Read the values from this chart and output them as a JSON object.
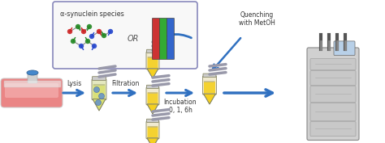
{
  "bg_color": "#ffffff",
  "fig_width": 4.74,
  "fig_height": 1.77,
  "dpi": 100,
  "box_title": "α-synuclein species",
  "label_lysis": "Lysis",
  "label_filtration": "Filtration",
  "label_incubation": "Incubation\n0, 1, 6h",
  "label_quenching": "Quenching\nwith MetOH",
  "label_or": "OR",
  "arrow_color": "#3070c0",
  "box_edge_color": "#8888bb",
  "text_color": "#333333",
  "tube_yellow": "#f5d020",
  "tube_gray": "#cccccc",
  "tube_edge": "#888855",
  "flask_pink": "#e87878",
  "flask_outline": "#cccccc",
  "flask_cap": "#4488cc",
  "monomer_red": "#cc2222",
  "monomer_blue": "#2244cc",
  "monomer_green": "#228822",
  "fibril_red": "#cc3333",
  "fibril_green": "#33aa33",
  "fibril_blue": "#3366cc",
  "filter_color": "#9999aa",
  "lcms_body": "#cccccc",
  "lcms_dark": "#888888"
}
